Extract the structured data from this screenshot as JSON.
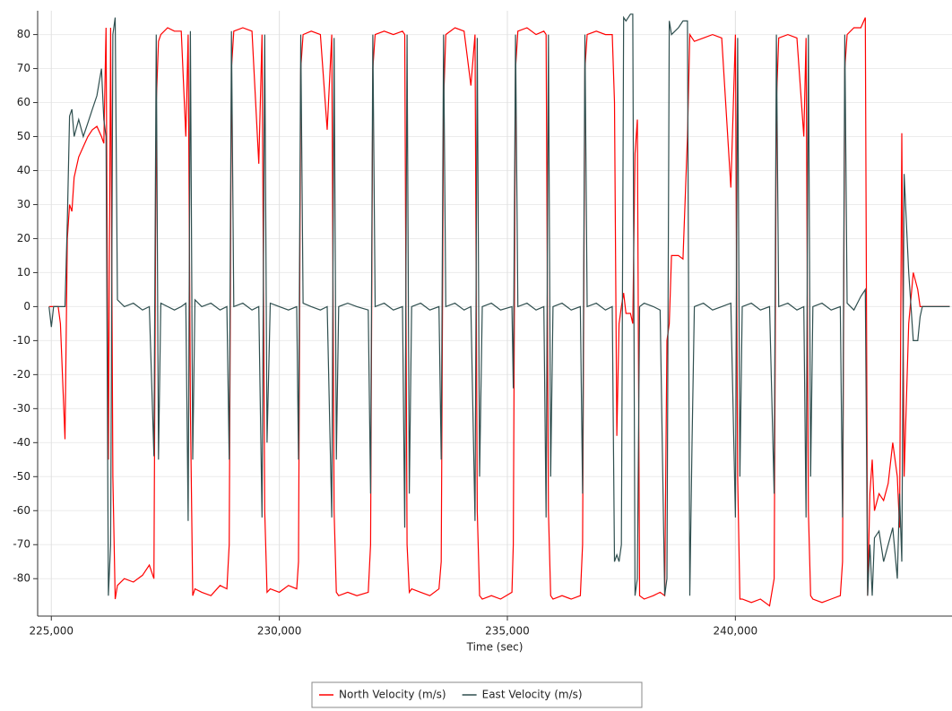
{
  "chart_data": {
    "type": "line",
    "xlabel": "Time (sec)",
    "xlim": [
      224700,
      244750
    ],
    "ylim": [
      -91,
      87
    ],
    "xticks": [
      {
        "value": 225000,
        "label": "225,000"
      },
      {
        "value": 230000,
        "label": "230,000"
      },
      {
        "value": 235000,
        "label": "235,000"
      },
      {
        "value": 240000,
        "label": "240,000"
      }
    ],
    "yticks": [
      -80,
      -70,
      -60,
      -50,
      -40,
      -30,
      -20,
      -10,
      0,
      10,
      20,
      30,
      40,
      50,
      60,
      70,
      80
    ],
    "grid": true,
    "legend": "bottom",
    "x": [
      224950,
      225000,
      225050,
      225150,
      225200,
      225300,
      225350,
      225400,
      225450,
      225500,
      225600,
      225700,
      225800,
      225900,
      226000,
      226100,
      226150,
      226200,
      226250,
      226300,
      226350,
      226400,
      226450,
      226600,
      226800,
      227000,
      227150,
      227250,
      227300,
      227350,
      227400,
      227550,
      227700,
      227850,
      227950,
      228000,
      228050,
      228100,
      228150,
      228300,
      228500,
      228700,
      228850,
      228900,
      228950,
      229000,
      229200,
      229400,
      229550,
      229620,
      229680,
      229730,
      229800,
      230000,
      230200,
      230380,
      230420,
      230470,
      230520,
      230700,
      230900,
      231050,
      231150,
      231200,
      231250,
      231300,
      231500,
      231700,
      231950,
      232000,
      232050,
      232100,
      232300,
      232500,
      232700,
      232750,
      232800,
      232850,
      232900,
      233100,
      233300,
      233500,
      233550,
      233600,
      233650,
      233850,
      234050,
      234200,
      234290,
      234340,
      234390,
      234450,
      234650,
      234850,
      235100,
      235130,
      235180,
      235230,
      235430,
      235630,
      235800,
      235850,
      235900,
      235950,
      236000,
      236200,
      236400,
      236600,
      236650,
      236700,
      236750,
      236950,
      237150,
      237300,
      237350,
      237400,
      237450,
      237500,
      237550,
      237600,
      237700,
      237750,
      237800,
      237850,
      237900,
      238000,
      238200,
      238350,
      238450,
      238500,
      238550,
      238600,
      238750,
      238850,
      238950,
      239000,
      239050,
      239100,
      239300,
      239500,
      239700,
      239900,
      240000,
      240050,
      240100,
      240150,
      240350,
      240550,
      240750,
      240850,
      240900,
      240950,
      241150,
      241350,
      241500,
      241550,
      241600,
      241650,
      241700,
      241900,
      242100,
      242300,
      242350,
      242400,
      242450,
      242600,
      242750,
      242850,
      242900,
      242950,
      243000,
      243050,
      243150,
      243250,
      243350,
      243450,
      243550,
      243600,
      243650,
      243700,
      243800,
      243900,
      244000,
      244050,
      244100,
      244700
    ],
    "series": [
      {
        "name": "North Velocity (m/s)",
        "color": "#ff0000",
        "values": [
          0,
          0,
          0,
          0,
          -5,
          -39,
          20,
          30,
          28,
          38,
          44,
          47,
          50,
          52,
          53,
          50,
          48,
          82,
          -45,
          82,
          -50,
          -86,
          -82,
          -80,
          -81,
          -79,
          -76,
          -80,
          60,
          78,
          80,
          82,
          81,
          81,
          50,
          80,
          -30,
          -85,
          -83,
          -84,
          -85,
          -82,
          -83,
          -70,
          70,
          81,
          82,
          81,
          42,
          80,
          -60,
          -84,
          -83,
          -84,
          -82,
          -83,
          -75,
          70,
          80,
          81,
          80,
          52,
          80,
          -60,
          -84,
          -85,
          -84,
          -85,
          -84,
          -70,
          70,
          80,
          81,
          80,
          81,
          80,
          -70,
          -84,
          -83,
          -84,
          -85,
          -83,
          -75,
          60,
          80,
          82,
          81,
          65,
          80,
          -60,
          -85,
          -86,
          -85,
          -86,
          -84,
          -70,
          70,
          81,
          82,
          80,
          81,
          80,
          -60,
          -85,
          -86,
          -85,
          -86,
          -85,
          -70,
          70,
          80,
          81,
          80,
          80,
          60,
          -38,
          -5,
          0,
          4,
          -2,
          -2,
          -5,
          45,
          55,
          -85,
          -86,
          -85,
          -84,
          -85,
          -10,
          -5,
          15,
          15,
          14,
          50,
          80,
          79,
          78,
          79,
          80,
          79,
          35,
          80,
          -50,
          -86,
          -86,
          -87,
          -86,
          -88,
          -80,
          60,
          79,
          80,
          79,
          50,
          79,
          -60,
          -85,
          -86,
          -87,
          -86,
          -85,
          -75,
          70,
          80,
          82,
          82,
          85,
          -85,
          -55,
          -45,
          -60,
          -55,
          -57,
          -52,
          -40,
          -50,
          -65,
          51,
          -50,
          -5,
          10,
          5,
          0,
          0,
          0
        ]
      },
      {
        "name": "East Velocity (m/s)",
        "color": "#2f4f4f",
        "values": [
          0,
          -6,
          0,
          0,
          0,
          0,
          25,
          56,
          58,
          50,
          55,
          50,
          54,
          58,
          62,
          70,
          55,
          50,
          -85,
          -70,
          80,
          85,
          2,
          0,
          1,
          -1,
          0,
          -44,
          80,
          -45,
          1,
          0,
          -1,
          0,
          1,
          -63,
          81,
          -45,
          2,
          0,
          1,
          -1,
          0,
          -45,
          81,
          0,
          1,
          -1,
          0,
          -62,
          80,
          -40,
          1,
          0,
          -1,
          0,
          -45,
          80,
          1,
          0,
          -1,
          0,
          -62,
          79,
          -45,
          0,
          1,
          0,
          -1,
          -55,
          80,
          0,
          1,
          -1,
          0,
          -65,
          80,
          -55,
          0,
          1,
          -1,
          0,
          -45,
          80,
          0,
          1,
          -1,
          0,
          -63,
          79,
          -50,
          0,
          1,
          -1,
          0,
          -24,
          80,
          0,
          1,
          -1,
          0,
          -62,
          80,
          -50,
          0,
          1,
          -1,
          0,
          -55,
          80,
          0,
          1,
          -1,
          0,
          -75,
          -73,
          -75,
          -70,
          85,
          84,
          86,
          86,
          -85,
          -80,
          0,
          1,
          0,
          -1,
          -85,
          -80,
          84,
          80,
          82,
          84,
          84,
          -85,
          -40,
          0,
          1,
          -1,
          0,
          1,
          -62,
          79,
          -50,
          0,
          1,
          -1,
          0,
          -55,
          80,
          0,
          1,
          -1,
          0,
          -62,
          80,
          -50,
          0,
          1,
          -1,
          0,
          -62,
          80,
          1,
          -1,
          3,
          5,
          -85,
          -70,
          -85,
          -68,
          -66,
          -75,
          -70,
          -65,
          -80,
          -55,
          -75,
          39,
          10,
          -10,
          -10,
          -3,
          0,
          0
        ]
      }
    ]
  }
}
